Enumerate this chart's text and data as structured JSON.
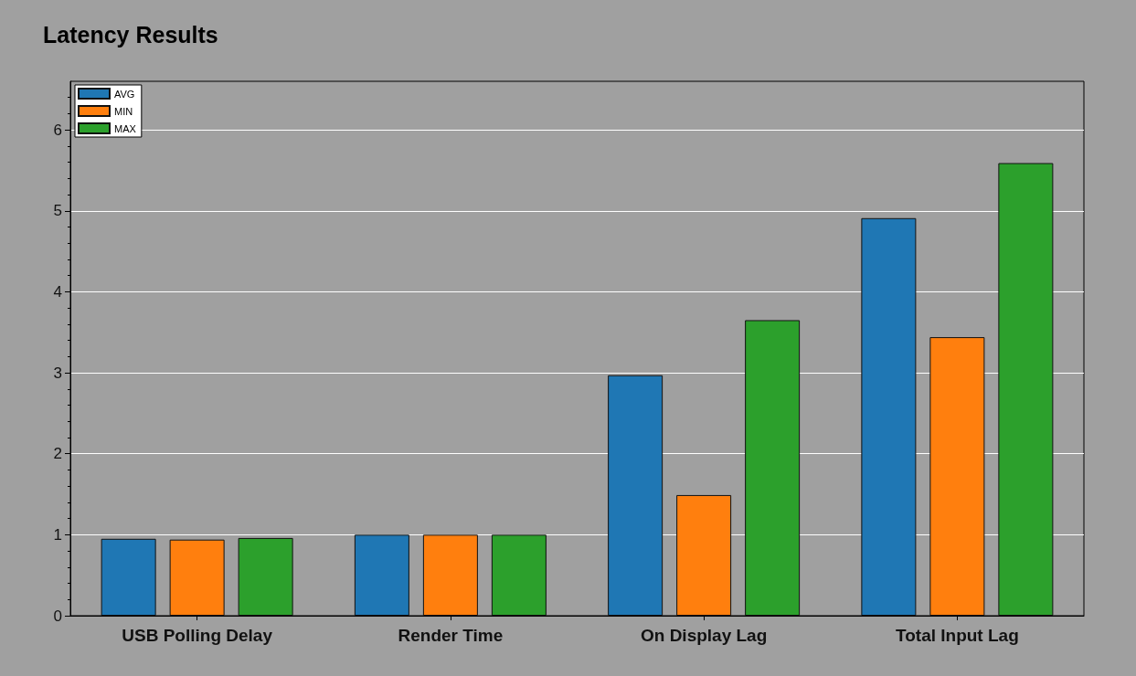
{
  "chart_data": {
    "type": "bar",
    "title": "Latency Results",
    "categories": [
      "USB Polling Delay",
      "Render Time",
      "On Display Lag",
      "Total Input Lag"
    ],
    "series": [
      {
        "name": "AVG",
        "color": "#1f77b4",
        "values": [
          0.95,
          1.0,
          2.97,
          4.91
        ]
      },
      {
        "name": "MIN",
        "color": "#ff7f0e",
        "values": [
          0.94,
          1.0,
          1.49,
          3.44
        ]
      },
      {
        "name": "MAX",
        "color": "#2ca02c",
        "values": [
          0.96,
          1.0,
          3.65,
          5.59
        ]
      }
    ],
    "ylim": [
      0,
      6.6
    ],
    "yticks": [
      0,
      1,
      2,
      3,
      4,
      5,
      6
    ],
    "grid": "y",
    "legend": "top left"
  }
}
